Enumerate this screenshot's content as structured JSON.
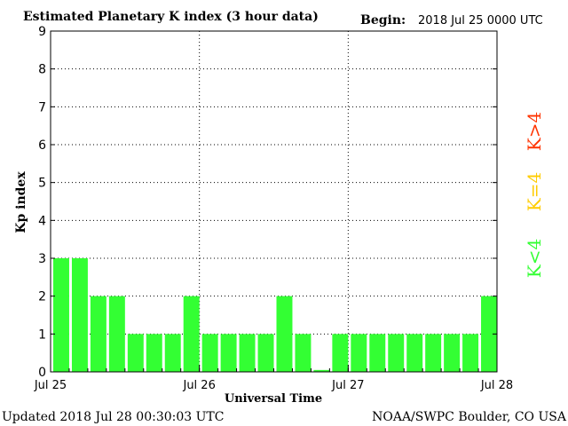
{
  "header": {
    "title": "Estimated Planetary K index (3 hour data)",
    "begin_label": "Begin:",
    "begin_value": "2018 Jul 25 0000 UTC"
  },
  "footer": {
    "updated": "Updated 2018 Jul 28 00:30:03 UTC",
    "source": "NOAA/SWPC Boulder, CO USA"
  },
  "legend": {
    "greater": "K>4",
    "equal": "K=4",
    "less": "K<4"
  },
  "colors": {
    "bar_below_4": "#33ff33",
    "bar_equal_4": "#ffcc00",
    "bar_above_4": "#ff3300",
    "text": "#000000",
    "grid": "#000000"
  },
  "chart_data": {
    "type": "bar",
    "title": "Estimated Planetary K index (3 hour data)",
    "xlabel": "Universal Time",
    "ylabel": "Kp index",
    "ylim": [
      0,
      9
    ],
    "yticks": [
      0,
      1,
      2,
      3,
      4,
      5,
      6,
      7,
      8,
      9
    ],
    "xtick_labels": [
      "Jul 25",
      "Jul 26",
      "Jul 27",
      "Jul 28"
    ],
    "grid": true,
    "values": [
      3,
      3,
      2,
      2,
      1,
      1,
      1,
      2,
      1,
      1,
      1,
      1,
      2,
      1,
      0.05,
      1,
      1,
      1,
      1,
      1,
      1,
      1,
      1,
      2
    ]
  }
}
